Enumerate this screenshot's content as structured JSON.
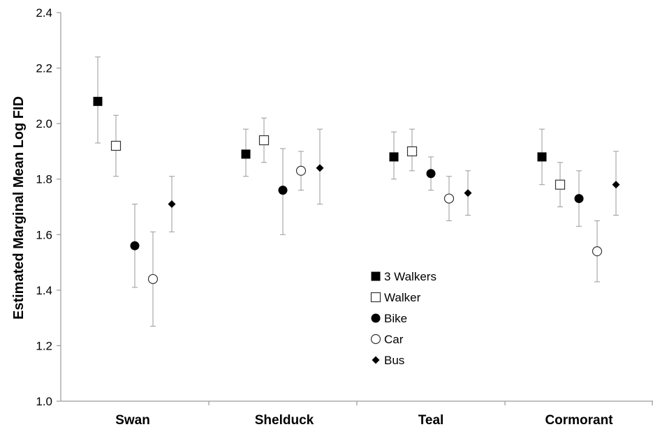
{
  "chart_data": {
    "type": "scatter",
    "xlabel": "",
    "ylabel": "Estimated Marginal Mean Log FID",
    "ylim": [
      1.0,
      2.4
    ],
    "yticks": [
      "1.0",
      "1.2",
      "1.4",
      "1.6",
      "1.8",
      "2.0",
      "2.2",
      "2.4"
    ],
    "categories": [
      "Swan",
      "Shelduck",
      "Teal",
      "Cormorant"
    ],
    "grid": false,
    "legend_position": "center",
    "series": [
      {
        "name": "3 Walkers",
        "marker": "filled-square",
        "values": [
          2.08,
          1.89,
          1.88,
          1.88
        ],
        "lower": [
          1.93,
          1.81,
          1.8,
          1.78
        ],
        "upper": [
          2.24,
          1.98,
          1.97,
          1.98
        ]
      },
      {
        "name": "Walker",
        "marker": "open-square",
        "values": [
          1.92,
          1.94,
          1.9,
          1.78
        ],
        "lower": [
          1.81,
          1.86,
          1.83,
          1.7
        ],
        "upper": [
          2.03,
          2.02,
          1.98,
          1.86
        ]
      },
      {
        "name": "Bike",
        "marker": "filled-circle",
        "values": [
          1.56,
          1.76,
          1.82,
          1.73
        ],
        "lower": [
          1.41,
          1.6,
          1.76,
          1.63
        ],
        "upper": [
          1.71,
          1.91,
          1.88,
          1.83
        ]
      },
      {
        "name": "Car",
        "marker": "open-circle",
        "values": [
          1.44,
          1.83,
          1.73,
          1.54
        ],
        "lower": [
          1.27,
          1.76,
          1.65,
          1.43
        ],
        "upper": [
          1.61,
          1.9,
          1.81,
          1.65
        ]
      },
      {
        "name": "Bus",
        "marker": "filled-diamond",
        "values": [
          1.71,
          1.84,
          1.75,
          1.78
        ],
        "lower": [
          1.61,
          1.71,
          1.67,
          1.67
        ],
        "upper": [
          1.81,
          1.98,
          1.83,
          1.9
        ]
      }
    ],
    "colors": {
      "marker": "#000000",
      "errorbar": "#9a9a9a",
      "axis": "#9a9a9a"
    }
  }
}
